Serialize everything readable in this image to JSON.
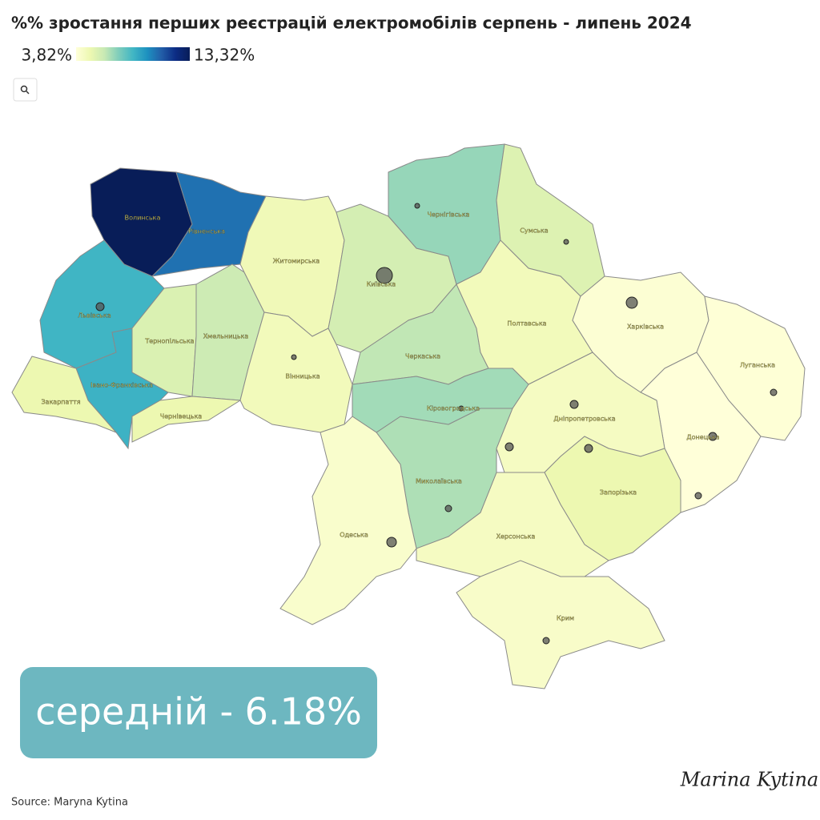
{
  "chart_data": {
    "type": "choropleth",
    "title": "%% зростання перших реєстрацій електромобілів серпень - липень 2024",
    "legend_ticks": [
      {
        "value": 3.82,
        "label": "3,82%"
      },
      {
        "value": 13.32,
        "label": "13,32%"
      }
    ],
    "colorscale": [
      "#ffffd9",
      "#edf8b1",
      "#c7e9b4",
      "#7fcdbb",
      "#41b6c4",
      "#1d91c0",
      "#225ea8",
      "#0c2c84",
      "#081d58"
    ],
    "regions": [
      {
        "name": "Волинська",
        "value": 13.32
      },
      {
        "name": "Рівненська",
        "value": 10.5
      },
      {
        "name": "Львівська",
        "value": 8.6
      },
      {
        "name": "Тернопільська",
        "value": 5.6
      },
      {
        "name": "Хмельницька",
        "value": 6.0
      },
      {
        "name": "Івано-Франківська",
        "value": 8.7
      },
      {
        "name": "Закарпаття",
        "value": 5.0
      },
      {
        "name": "Чернівецька",
        "value": 5.0
      },
      {
        "name": "Житомирська",
        "value": 4.8
      },
      {
        "name": "Вінницька",
        "value": 4.7
      },
      {
        "name": "Київська",
        "value": 5.8
      },
      {
        "name": "Черкаська",
        "value": 6.3
      },
      {
        "name": "Чернігівська",
        "value": 7.0
      },
      {
        "name": "Сумська",
        "value": 5.5
      },
      {
        "name": "Полтавська",
        "value": 4.7
      },
      {
        "name": "Харківська",
        "value": 4.0
      },
      {
        "name": "Луганська",
        "value": 3.9
      },
      {
        "name": "Донецька",
        "value": 3.82
      },
      {
        "name": "Дніпропетровська",
        "value": 4.5
      },
      {
        "name": "Запорізька",
        "value": 5.0
      },
      {
        "name": "Херсонська",
        "value": 4.5
      },
      {
        "name": "Миколаївська",
        "value": 6.6
      },
      {
        "name": "Кіровоградська",
        "value": 6.8
      },
      {
        "name": "Одеська",
        "value": 4.2
      },
      {
        "name": "Крим",
        "value": 4.3
      }
    ]
  },
  "average_label": "середній - 6.18%",
  "source": "Source: Maryna Kytina",
  "signature": "Marina Kytina"
}
